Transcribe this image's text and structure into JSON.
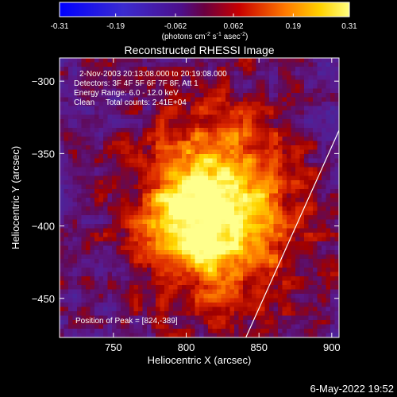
{
  "colorbar": {
    "tick_labels": [
      "-0.31",
      "-0.19",
      "-0.062",
      "0.062",
      "0.19",
      "0.31"
    ],
    "tick_values": [
      -0.31,
      -0.19,
      -0.062,
      0.062,
      0.19,
      0.31
    ],
    "range": [
      -0.31,
      0.31
    ],
    "units_prefix": "(photons cm",
    "units_exp1": "-2",
    "units_mid": " s",
    "units_exp2": "-1",
    "units_mid2": " asec",
    "units_exp3": "-2",
    "units_suffix": ")"
  },
  "chart_data": {
    "type": "heatmap",
    "title": "Reconstructed RHESSI Image",
    "xlabel": "Heliocentric X (arcsec)",
    "ylabel": "Heliocentric Y (arcsec)",
    "xlim": [
      713,
      905
    ],
    "ylim": [
      -477,
      -284
    ],
    "x_ticks": [
      750,
      800,
      850,
      900
    ],
    "x_tick_labels": [
      "750",
      "800",
      "850",
      "900"
    ],
    "y_ticks": [
      -300,
      -350,
      -400,
      -450
    ],
    "y_tick_labels": [
      "−300",
      "−350",
      "−400",
      "−450"
    ],
    "peak_position": [
      824,
      -389
    ],
    "annotations": [
      "2-Nov-2003 20:13:08.000 to 20:19:08.000",
      "Detectors: 3F 4F 5F 6F 7F 8F, Att 1",
      "Energy Range: 6.0 - 12.0 keV",
      "Clean     Total counts: 2.41E+04"
    ],
    "peak_label": "Position of Peak = [824,-389]",
    "limb_line": [
      [
        841,
        -477
      ],
      [
        905,
        -334
      ]
    ],
    "colors": {
      "limb": "#ffffff",
      "background": "#000000"
    }
  },
  "footer": {
    "date": "6-May-2022 19:52"
  }
}
